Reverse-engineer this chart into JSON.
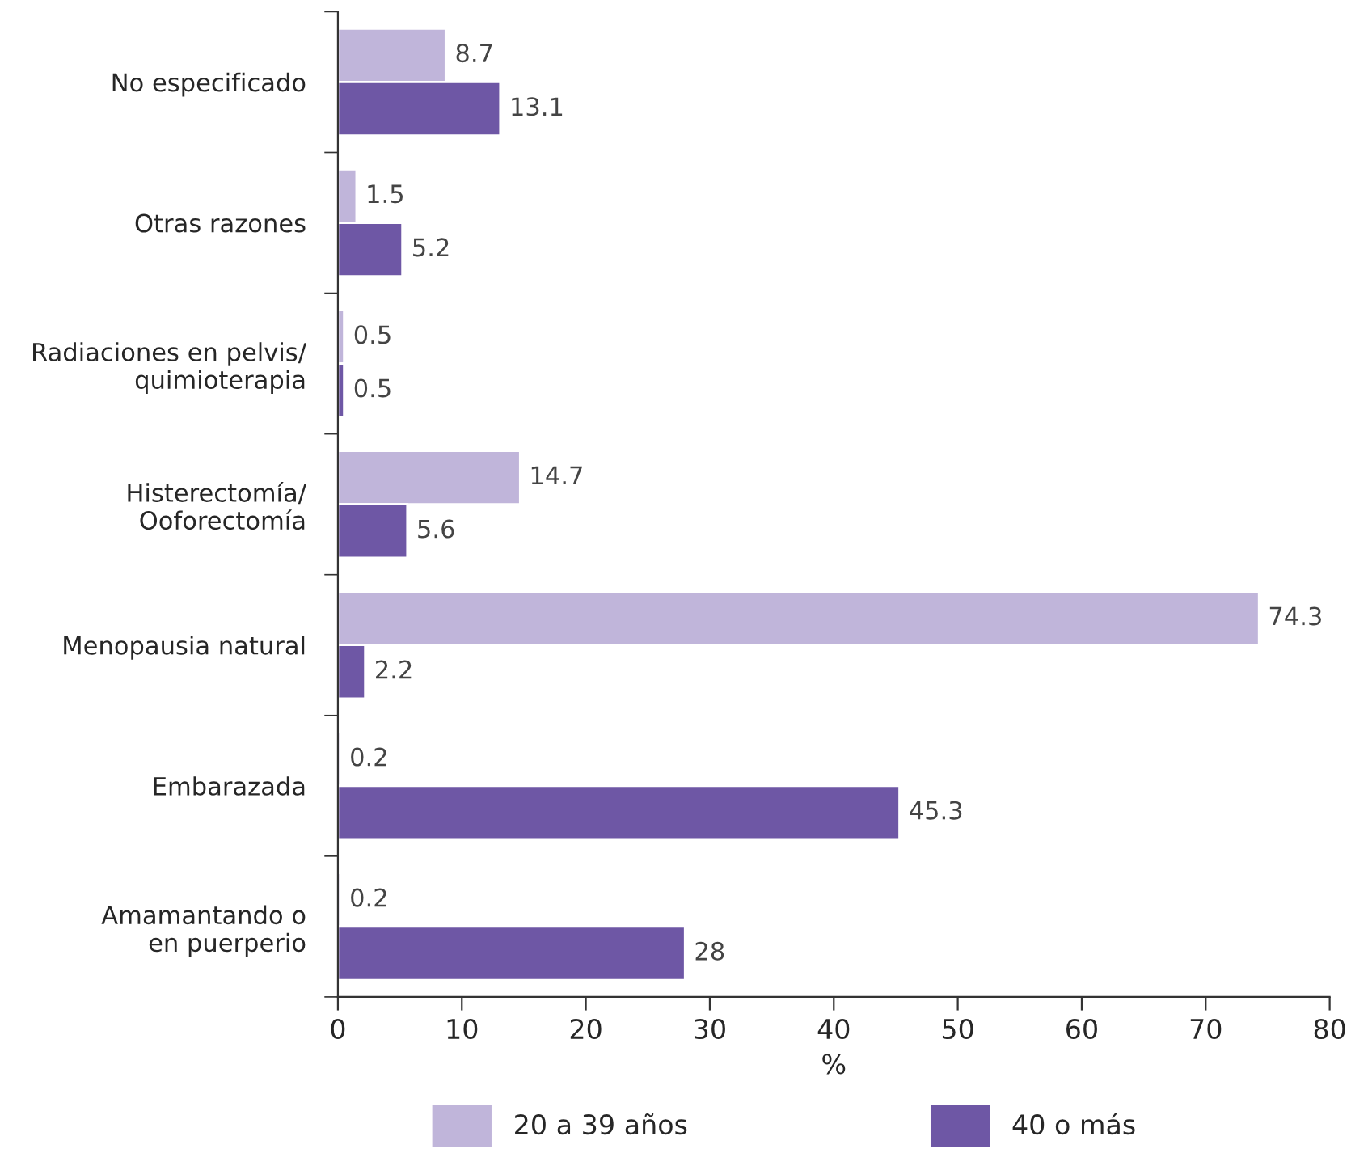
{
  "chart_data": {
    "type": "bar",
    "orientation": "horizontal",
    "categories": [
      "No especificado",
      "Otras razones",
      "Radiaciones en pelvis/\nquimioterapia",
      "Histerectomía/\nOoforectomía",
      "Menopausia natural",
      "Embarazada",
      "Amamantando o\nen puerperio"
    ],
    "series": [
      {
        "name": "20 a 39 años",
        "color": "#c0b5da",
        "values": [
          8.7,
          1.5,
          0.5,
          14.7,
          74.3,
          0.2,
          0.2
        ]
      },
      {
        "name": "40 o más",
        "color": "#6e57a5",
        "values": [
          13.1,
          5.2,
          0.5,
          5.6,
          2.2,
          45.3,
          28
        ]
      }
    ],
    "xlabel": "%",
    "xlim": [
      0,
      80
    ],
    "xticks": [
      0,
      10,
      20,
      30,
      40,
      50,
      60,
      70,
      80
    ],
    "data_labels": true,
    "legend": "bottom",
    "grid": false
  }
}
